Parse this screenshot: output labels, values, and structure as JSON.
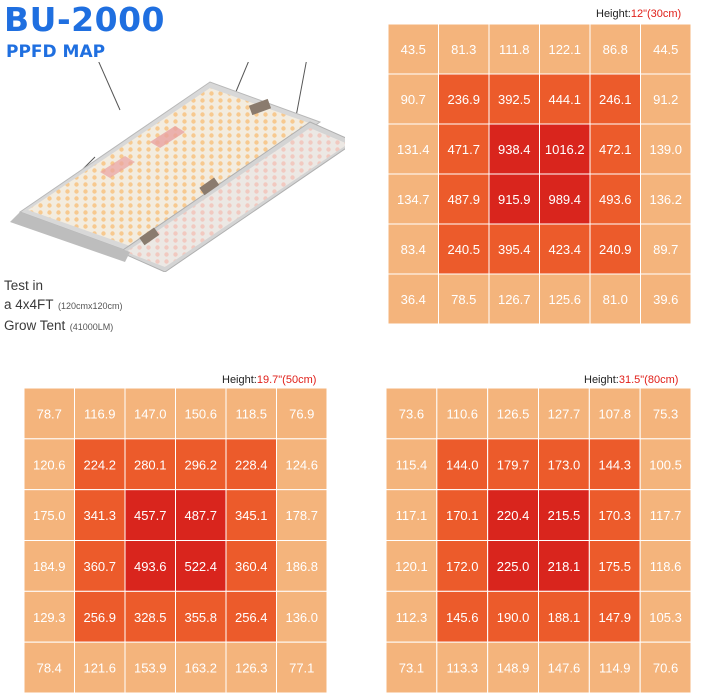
{
  "header": {
    "title": "BU-2000",
    "subtitle": "PPFD MAP"
  },
  "test_note": {
    "line1": "Test in",
    "line2_main": "a 4x4FT",
    "line2_small": "(120cmx120cm)",
    "line3_main": "Grow Tent",
    "line3_small": "(41000LM)"
  },
  "colors": {
    "title": "#1f6fe0",
    "height_value": "#e0201a",
    "outer_ring": "#f4b47c",
    "middle_ring": "#ec5b2b",
    "center": "#d9251d",
    "grid_line": "#ffffff"
  },
  "chart_data": [
    {
      "type": "heatmap",
      "height_label": "Height:",
      "height_value": "12\"(30cm)",
      "x_ticks": [
        "0",
        "200",
        "400",
        "600",
        "800",
        "1000",
        "1200"
      ],
      "y_ticks": [
        "1200",
        "1000",
        "800",
        "600",
        "400",
        "200"
      ],
      "xlim": [
        0,
        1200
      ],
      "ylim": [
        0,
        1200
      ],
      "grid": true,
      "values": [
        [
          "43.5",
          "81.3",
          "111.8",
          "122.1",
          "86.8",
          "44.5"
        ],
        [
          "90.7",
          "236.9",
          "392.5",
          "444.1",
          "246.1",
          "91.2"
        ],
        [
          "131.4",
          "471.7",
          "938.4",
          "1016.2",
          "472.1",
          "139.0"
        ],
        [
          "134.7",
          "487.9",
          "915.9",
          "989.4",
          "493.6",
          "136.2"
        ],
        [
          "83.4",
          "240.5",
          "395.4",
          "423.4",
          "240.9",
          "89.7"
        ],
        [
          "36.4",
          "78.5",
          "126.7",
          "125.6",
          "81.0",
          "39.6"
        ]
      ]
    },
    {
      "type": "heatmap",
      "height_label": "Height:",
      "height_value": "19.7\"(50cm)",
      "x_ticks": [
        "0",
        "200",
        "400",
        "600",
        "800",
        "1000",
        "1200"
      ],
      "y_ticks": [
        "1200",
        "1000",
        "800",
        "600",
        "400",
        "200"
      ],
      "xlim": [
        0,
        1200
      ],
      "ylim": [
        0,
        1200
      ],
      "grid": true,
      "values": [
        [
          "78.7",
          "116.9",
          "147.0",
          "150.6",
          "118.5",
          "76.9"
        ],
        [
          "120.6",
          "224.2",
          "280.1",
          "296.2",
          "228.4",
          "124.6"
        ],
        [
          "175.0",
          "341.3",
          "457.7",
          "487.7",
          "345.1",
          "178.7"
        ],
        [
          "184.9",
          "360.7",
          "493.6",
          "522.4",
          "360.4",
          "186.8"
        ],
        [
          "129.3",
          "256.9",
          "328.5",
          "355.8",
          "256.4",
          "136.0"
        ],
        [
          "78.4",
          "121.6",
          "153.9",
          "163.2",
          "126.3",
          "77.1"
        ]
      ]
    },
    {
      "type": "heatmap",
      "height_label": "Height:",
      "height_value": "31.5\"(80cm)",
      "x_ticks": [
        "0",
        "200",
        "400",
        "600",
        "800",
        "1000",
        "1200"
      ],
      "y_ticks": [
        "1200",
        "1000",
        "800",
        "600",
        "400",
        "200"
      ],
      "xlim": [
        0,
        1200
      ],
      "ylim": [
        0,
        1200
      ],
      "grid": true,
      "values": [
        [
          "73.6",
          "110.6",
          "126.5",
          "127.7",
          "107.8",
          "75.3"
        ],
        [
          "115.4",
          "144.0",
          "179.7",
          "173.0",
          "144.3",
          "100.5"
        ],
        [
          "117.1",
          "170.1",
          "220.4",
          "215.5",
          "170.3",
          "117.7"
        ],
        [
          "120.1",
          "172.0",
          "225.0",
          "218.1",
          "175.5",
          "118.6"
        ],
        [
          "112.3",
          "145.6",
          "190.0",
          "188.1",
          "147.9",
          "105.3"
        ],
        [
          "73.1",
          "113.3",
          "148.9",
          "147.6",
          "114.9",
          "70.6"
        ]
      ]
    }
  ]
}
